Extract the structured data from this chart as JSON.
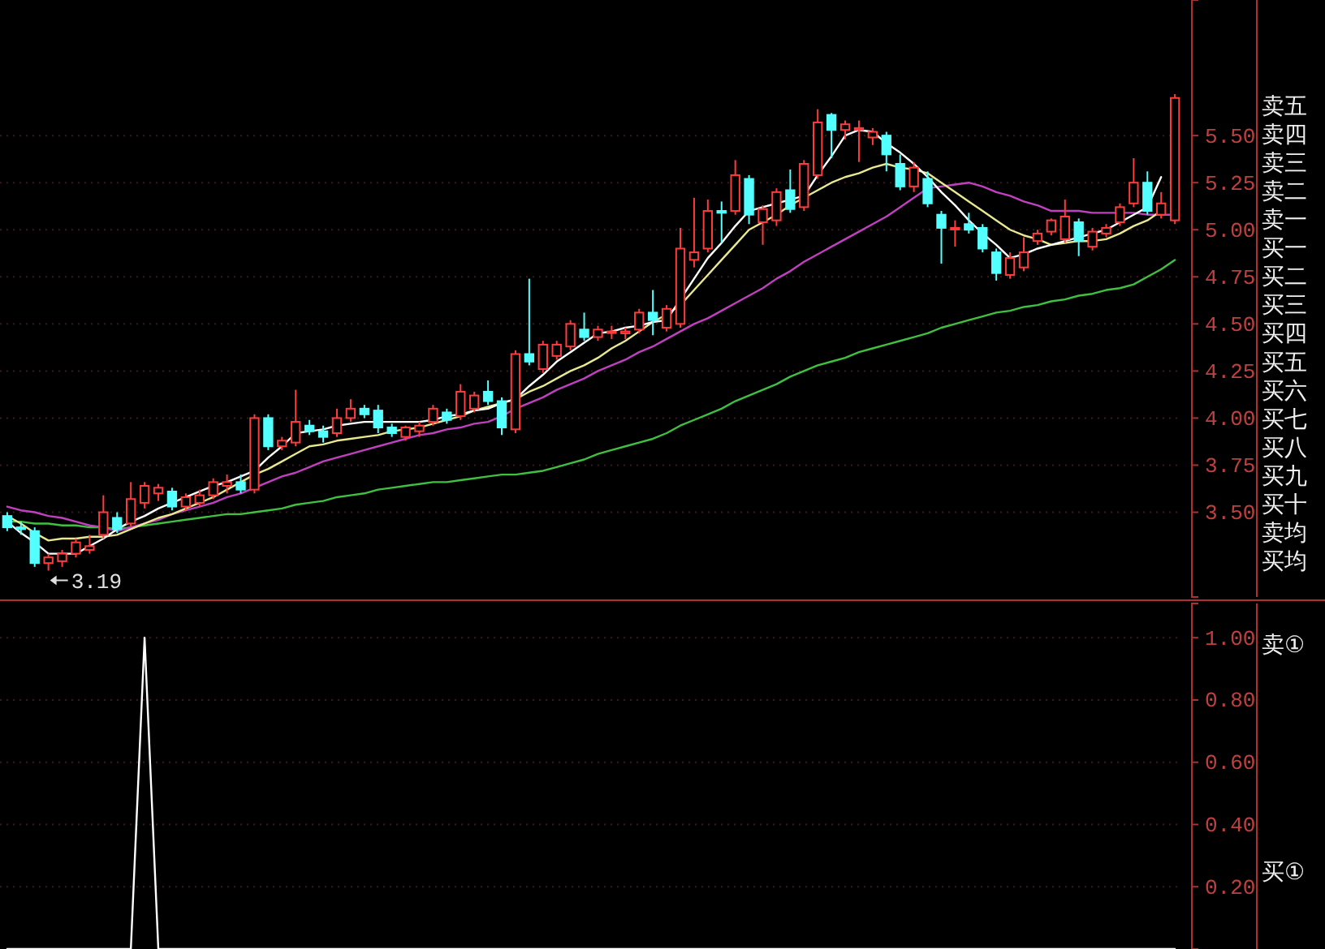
{
  "chart_data": [
    {
      "type": "candlestick",
      "categories": [
        null,
        null,
        null,
        null,
        null,
        null,
        null,
        null,
        null,
        null,
        null,
        null,
        null,
        null,
        null,
        null,
        null,
        null,
        null,
        null,
        null,
        null,
        null,
        null,
        null,
        null,
        null,
        null,
        null,
        null,
        null,
        null,
        null,
        null,
        null,
        null,
        null,
        null,
        null,
        null,
        null,
        null,
        null,
        null,
        null,
        null,
        null,
        null,
        null,
        null,
        null,
        null,
        null,
        null,
        null,
        null,
        null,
        null,
        null,
        null,
        null,
        null,
        null,
        null,
        null,
        null,
        null,
        null,
        null,
        null,
        null,
        null,
        null,
        null,
        null,
        null,
        null,
        null,
        null,
        null,
        null,
        null,
        null,
        null,
        null,
        null
      ],
      "ohlc": [
        [
          3.48,
          3.5,
          3.4,
          3.42
        ],
        [
          3.42,
          3.45,
          3.38,
          3.41
        ],
        [
          3.4,
          3.42,
          3.21,
          3.23
        ],
        [
          3.23,
          3.28,
          3.19,
          3.26
        ],
        [
          3.24,
          3.3,
          3.21,
          3.28
        ],
        [
          3.28,
          3.36,
          3.26,
          3.34
        ],
        [
          3.3,
          3.38,
          3.28,
          3.32
        ],
        [
          3.38,
          3.59,
          3.36,
          3.5
        ],
        [
          3.47,
          3.5,
          3.39,
          3.41
        ],
        [
          3.44,
          3.66,
          3.42,
          3.57
        ],
        [
          3.55,
          3.66,
          3.52,
          3.64
        ],
        [
          3.6,
          3.65,
          3.56,
          3.63
        ],
        [
          3.61,
          3.63,
          3.51,
          3.53
        ],
        [
          3.53,
          3.6,
          3.51,
          3.58
        ],
        [
          3.55,
          3.62,
          3.53,
          3.59
        ],
        [
          3.59,
          3.68,
          3.57,
          3.66
        ],
        [
          3.64,
          3.7,
          3.6,
          3.66
        ],
        [
          3.66,
          3.7,
          3.6,
          3.62
        ],
        [
          3.62,
          4.02,
          3.6,
          4.0
        ],
        [
          4.0,
          4.02,
          3.83,
          3.85
        ],
        [
          3.85,
          3.9,
          3.83,
          3.88
        ],
        [
          3.87,
          4.15,
          3.85,
          3.98
        ],
        [
          3.96,
          3.99,
          3.91,
          3.93
        ],
        [
          3.93,
          3.96,
          3.87,
          3.9
        ],
        [
          3.92,
          4.05,
          3.9,
          4.0
        ],
        [
          4.0,
          4.1,
          3.98,
          4.05
        ],
        [
          4.05,
          4.07,
          4.0,
          4.02
        ],
        [
          4.04,
          4.07,
          3.92,
          3.95
        ],
        [
          3.95,
          3.97,
          3.9,
          3.92
        ],
        [
          3.9,
          3.96,
          3.88,
          3.95
        ],
        [
          3.93,
          3.98,
          3.9,
          3.96
        ],
        [
          3.98,
          4.07,
          3.96,
          4.05
        ],
        [
          4.03,
          4.05,
          3.97,
          3.99
        ],
        [
          4.01,
          4.18,
          3.99,
          4.14
        ],
        [
          4.05,
          4.14,
          4.03,
          4.12
        ],
        [
          4.14,
          4.2,
          4.07,
          4.09
        ],
        [
          4.09,
          4.11,
          3.91,
          3.95
        ],
        [
          3.94,
          4.36,
          3.92,
          4.34
        ],
        [
          4.34,
          4.74,
          4.28,
          4.3
        ],
        [
          4.26,
          4.41,
          4.24,
          4.39
        ],
        [
          4.33,
          4.41,
          4.31,
          4.39
        ],
        [
          4.38,
          4.52,
          4.36,
          4.5
        ],
        [
          4.47,
          4.56,
          4.41,
          4.43
        ],
        [
          4.43,
          4.49,
          4.41,
          4.47
        ],
        [
          4.46,
          4.49,
          4.42,
          4.46
        ],
        [
          4.45,
          4.48,
          4.42,
          4.46
        ],
        [
          4.47,
          4.58,
          4.45,
          4.56
        ],
        [
          4.56,
          4.68,
          4.44,
          4.52
        ],
        [
          4.48,
          4.6,
          4.46,
          4.58
        ],
        [
          4.5,
          5.01,
          4.48,
          4.9
        ],
        [
          4.84,
          5.17,
          4.8,
          4.88
        ],
        [
          4.9,
          5.16,
          4.88,
          5.1
        ],
        [
          5.1,
          5.15,
          4.93,
          5.09
        ],
        [
          5.1,
          5.37,
          5.08,
          5.29
        ],
        [
          5.27,
          5.29,
          5.03,
          5.08
        ],
        [
          5.04,
          5.13,
          4.92,
          5.11
        ],
        [
          5.05,
          5.22,
          5.02,
          5.2
        ],
        [
          5.21,
          5.32,
          5.09,
          5.11
        ],
        [
          5.12,
          5.37,
          5.1,
          5.35
        ],
        [
          5.29,
          5.64,
          5.27,
          5.57
        ],
        [
          5.61,
          5.62,
          5.38,
          5.53
        ],
        [
          5.53,
          5.58,
          5.48,
          5.56
        ],
        [
          5.54,
          5.58,
          5.36,
          5.54
        ],
        [
          5.49,
          5.54,
          5.45,
          5.52
        ],
        [
          5.5,
          5.52,
          5.31,
          5.4
        ],
        [
          5.35,
          5.4,
          5.21,
          5.23
        ],
        [
          5.23,
          5.36,
          5.2,
          5.33
        ],
        [
          5.27,
          5.31,
          5.12,
          5.14
        ],
        [
          5.08,
          5.1,
          4.82,
          5.01
        ],
        [
          5.01,
          5.05,
          4.91,
          5.01
        ],
        [
          5.03,
          5.09,
          4.98,
          5.0
        ],
        [
          5.01,
          5.03,
          4.88,
          4.9
        ],
        [
          4.88,
          4.9,
          4.73,
          4.77
        ],
        [
          4.76,
          4.88,
          4.74,
          4.85
        ],
        [
          4.8,
          4.96,
          4.78,
          4.88
        ],
        [
          4.94,
          5.0,
          4.92,
          4.98
        ],
        [
          4.99,
          5.06,
          4.97,
          5.05
        ],
        [
          4.95,
          5.16,
          4.93,
          5.07
        ],
        [
          5.04,
          5.06,
          4.86,
          4.94
        ],
        [
          4.91,
          5.01,
          4.89,
          4.99
        ],
        [
          4.98,
          5.03,
          4.96,
          5.01
        ],
        [
          5.04,
          5.14,
          5.02,
          5.12
        ],
        [
          5.14,
          5.38,
          5.12,
          5.25
        ],
        [
          5.25,
          5.31,
          5.08,
          5.1
        ],
        [
          5.08,
          5.2,
          5.06,
          5.14
        ],
        [
          5.05,
          5.72,
          5.03,
          5.7
        ]
      ],
      "series": [
        {
          "type": "line",
          "color": "#40c040",
          "values": [
            3.45,
            3.45,
            3.44,
            3.44,
            3.43,
            3.43,
            3.42,
            3.42,
            3.41,
            3.42,
            3.43,
            3.44,
            3.45,
            3.46,
            3.47,
            3.48,
            3.49,
            3.49,
            3.5,
            3.51,
            3.52,
            3.54,
            3.55,
            3.56,
            3.58,
            3.59,
            3.6,
            3.62,
            3.63,
            3.64,
            3.65,
            3.66,
            3.66,
            3.67,
            3.68,
            3.69,
            3.7,
            3.7,
            3.71,
            3.72,
            3.74,
            3.76,
            3.78,
            3.81,
            3.83,
            3.85,
            3.87,
            3.89,
            3.92,
            3.96,
            3.99,
            4.02,
            4.05,
            4.09,
            4.12,
            4.15,
            4.18,
            4.22,
            4.25,
            4.28,
            4.3,
            4.32,
            4.35,
            4.37,
            4.39,
            4.41,
            4.43,
            4.45,
            4.48,
            4.5,
            4.52,
            4.54,
            4.56,
            4.57,
            4.59,
            4.6,
            4.62,
            4.63,
            4.65,
            4.66,
            4.68,
            4.69,
            4.71,
            4.75,
            4.79,
            4.84
          ]
        },
        {
          "type": "line",
          "color": "#c040c0",
          "values": [
            3.53,
            3.51,
            3.5,
            3.48,
            3.47,
            3.45,
            3.43,
            3.42,
            3.4,
            3.42,
            3.44,
            3.46,
            3.49,
            3.51,
            3.53,
            3.55,
            3.58,
            3.6,
            3.63,
            3.66,
            3.69,
            3.71,
            3.74,
            3.77,
            3.79,
            3.81,
            3.83,
            3.85,
            3.87,
            3.89,
            3.91,
            3.92,
            3.94,
            3.95,
            3.97,
            3.98,
            4.01,
            4.05,
            4.08,
            4.11,
            4.15,
            4.18,
            4.21,
            4.25,
            4.28,
            4.31,
            4.35,
            4.38,
            4.42,
            4.46,
            4.5,
            4.53,
            4.57,
            4.61,
            4.65,
            4.69,
            4.74,
            4.78,
            4.83,
            4.87,
            4.91,
            4.95,
            4.99,
            5.03,
            5.07,
            5.12,
            5.17,
            5.22,
            5.23,
            5.24,
            5.25,
            5.23,
            5.2,
            5.18,
            5.15,
            5.13,
            5.1,
            5.1,
            5.1,
            5.09,
            5.09,
            5.09,
            5.09,
            5.08,
            5.08,
            5.08
          ]
        },
        {
          "type": "line",
          "color": "#e8e890",
          "values": [
            3.48,
            3.44,
            3.39,
            3.35,
            3.36,
            3.36,
            3.37,
            3.37,
            3.38,
            3.41,
            3.44,
            3.47,
            3.49,
            3.52,
            3.55,
            3.58,
            3.62,
            3.66,
            3.7,
            3.73,
            3.77,
            3.81,
            3.85,
            3.86,
            3.88,
            3.89,
            3.9,
            3.91,
            3.93,
            3.94,
            3.95,
            3.97,
            3.99,
            4.01,
            4.04,
            4.06,
            4.08,
            4.1,
            4.14,
            4.17,
            4.21,
            4.25,
            4.28,
            4.32,
            4.37,
            4.41,
            4.46,
            4.51,
            4.55,
            4.6,
            4.68,
            4.76,
            4.84,
            4.92,
            5.0,
            5.04,
            5.08,
            5.13,
            5.17,
            5.21,
            5.25,
            5.28,
            5.3,
            5.33,
            5.35,
            5.33,
            5.32,
            5.3,
            5.25,
            5.2,
            5.15,
            5.1,
            5.05,
            5.0,
            4.97,
            4.95,
            4.92,
            4.93,
            4.94,
            4.94,
            4.95,
            4.98,
            5.02,
            5.05,
            5.1,
            null
          ]
        },
        {
          "type": "line",
          "color": "#ffffff",
          "values": [
            3.45,
            3.39,
            3.34,
            3.28,
            3.28,
            3.28,
            3.32,
            3.36,
            3.41,
            3.45,
            3.48,
            3.52,
            3.55,
            3.58,
            3.61,
            3.64,
            3.66,
            3.69,
            3.72,
            3.79,
            3.85,
            3.92,
            3.93,
            3.94,
            3.96,
            3.97,
            3.98,
            3.98,
            3.98,
            3.98,
            3.98,
            3.99,
            4.01,
            4.02,
            4.04,
            4.05,
            4.08,
            4.1,
            4.17,
            4.23,
            4.3,
            4.35,
            4.4,
            4.45,
            4.46,
            4.48,
            4.49,
            4.51,
            4.52,
            4.63,
            4.74,
            4.85,
            4.93,
            5.02,
            5.1,
            5.12,
            5.14,
            5.16,
            5.18,
            5.29,
            5.39,
            5.5,
            5.53,
            5.52,
            5.46,
            5.41,
            5.35,
            5.28,
            5.2,
            5.13,
            5.05,
            4.98,
            4.92,
            4.85,
            4.87,
            4.9,
            4.92,
            4.94,
            4.96,
            4.98,
            5.0,
            5.04,
            5.08,
            5.12,
            5.28,
            null
          ]
        }
      ],
      "ylim": [
        3.05,
        6.22
      ],
      "yticks": [
        {
          "value": 3.5,
          "label": "3.50"
        },
        3.75,
        {
          "value": 4,
          "label": "4.00"
        },
        4.25,
        {
          "value": 4.5,
          "label": "4.50"
        },
        4.75,
        {
          "value": 5,
          "label": "5.00"
        },
        5.25,
        {
          "value": 5.5,
          "label": "5.50"
        }
      ],
      "tick_labels": "y",
      "grid": "y",
      "annotations": [
        "3.19",
        "卖五",
        "卖四",
        "卖三",
        "卖二",
        "卖一",
        "买一",
        "买二",
        "买三",
        "买四",
        "买五",
        "买六",
        "买七",
        "买八",
        "买九",
        "买十",
        "卖均",
        "买均"
      ]
    },
    {
      "type": "line",
      "categories": [
        null,
        null,
        null,
        null,
        null,
        null,
        null,
        null,
        null,
        null,
        null,
        null,
        null,
        null,
        null,
        null,
        null,
        null,
        null,
        null,
        null,
        null,
        null,
        null,
        null,
        null,
        null,
        null,
        null,
        null,
        null,
        null,
        null,
        null,
        null,
        null,
        null,
        null,
        null,
        null,
        null,
        null,
        null,
        null,
        null,
        null,
        null,
        null,
        null,
        null,
        null,
        null,
        null,
        null,
        null,
        null,
        null,
        null,
        null,
        null,
        null,
        null,
        null,
        null,
        null,
        null,
        null,
        null,
        null,
        null,
        null,
        null,
        null,
        null,
        null,
        null,
        null,
        null,
        null,
        null,
        null,
        null,
        null,
        null,
        null,
        null
      ],
      "series": [
        {
          "color": "#ffffff",
          "values": [
            0,
            0,
            0,
            0,
            0,
            0,
            0,
            0,
            0,
            0,
            1,
            0,
            0,
            0,
            0,
            0,
            0,
            0,
            0,
            0,
            0,
            0,
            0,
            0,
            0,
            0,
            0,
            0,
            0,
            0,
            0,
            0,
            0,
            0,
            0,
            0,
            0,
            0,
            0,
            0,
            0,
            0,
            0,
            0,
            0,
            0,
            0,
            0,
            0,
            0,
            0,
            0,
            0,
            0,
            0,
            0,
            0,
            0,
            0,
            0,
            0,
            0,
            0,
            0,
            0,
            0,
            0,
            0,
            0,
            0,
            0,
            0,
            0,
            0,
            0,
            0,
            0,
            0,
            0,
            0,
            0,
            0,
            0,
            0,
            0,
            0
          ]
        }
      ],
      "ylim": [
        0,
        1.11
      ],
      "yticks": [
        {
          "value": 0.2,
          "label": "0.20"
        },
        {
          "value": 0.4,
          "label": "0.40"
        },
        {
          "value": 0.6,
          "label": "0.60"
        },
        {
          "value": 0.8,
          "label": "0.80"
        },
        {
          "value": 1,
          "label": "1.00"
        }
      ],
      "tick_labels": "y",
      "grid": "y",
      "annotations": [
        "卖①",
        "买①"
      ]
    }
  ]
}
